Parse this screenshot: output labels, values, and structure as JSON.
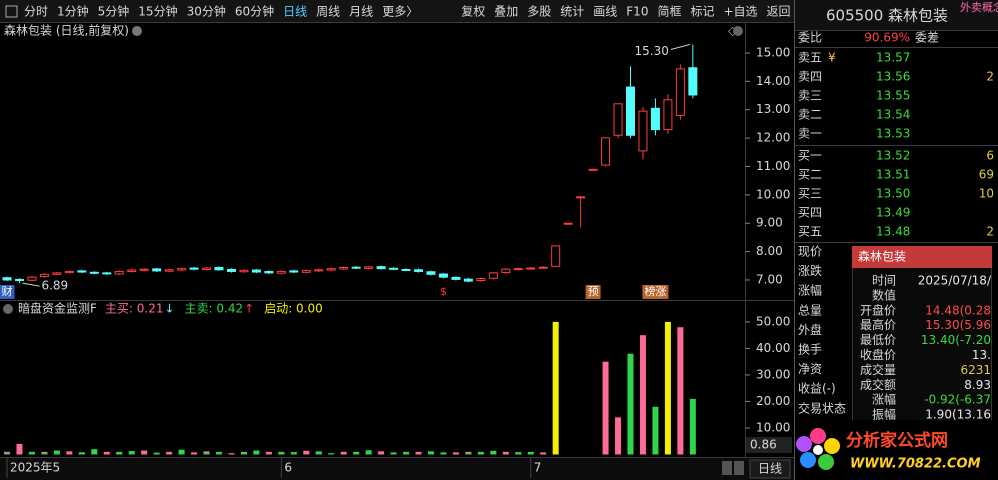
{
  "toolbar": [
    {
      "text": "分时"
    },
    {
      "text": "1分钟"
    },
    {
      "text": "5分钟"
    },
    {
      "text": "15分钟"
    },
    {
      "text": "30分钟"
    },
    {
      "text": "60分钟"
    },
    {
      "text": "日线",
      "active": true
    },
    {
      "text": "周线"
    },
    {
      "text": "月线"
    },
    {
      "text": "更多〉"
    },
    {
      "text": "复权"
    },
    {
      "text": "叠加"
    },
    {
      "text": "多股"
    },
    {
      "text": "统计"
    },
    {
      "text": "画线"
    },
    {
      "text": "F10"
    },
    {
      "text": "简框"
    },
    {
      "text": "标记"
    },
    {
      "text": "+自选"
    },
    {
      "text": "返回"
    }
  ],
  "chart_data": [
    {
      "type": "candlestick",
      "title": "森林包装 (日线,前复权)",
      "categories": [
        "2025年5",
        null,
        null,
        null,
        null,
        null,
        null,
        null,
        null,
        null,
        null,
        null,
        null,
        null,
        null,
        null,
        null,
        null,
        null,
        null,
        null,
        null,
        "6",
        null,
        null,
        null,
        null,
        null,
        null,
        null,
        null,
        null,
        null,
        null,
        null,
        null,
        null,
        null,
        null,
        null,
        null,
        null,
        "7",
        null,
        null,
        null,
        null,
        null,
        null,
        null,
        null,
        null,
        null,
        null,
        null,
        null
      ],
      "open": [
        7.08,
        7.02,
        6.99,
        7.12,
        7.2,
        7.26,
        7.32,
        7.27,
        7.25,
        7.21,
        7.3,
        7.34,
        7.39,
        7.31,
        7.35,
        7.42,
        7.37,
        7.44,
        7.37,
        7.29,
        7.35,
        7.3,
        7.24,
        7.32,
        7.27,
        7.32,
        7.35,
        7.39,
        7.45,
        7.41,
        7.47,
        7.41,
        7.37,
        7.36,
        7.29,
        7.21,
        7.09,
        7.03,
        6.98,
        7.06,
        7.26,
        7.37,
        7.41,
        7.43,
        7.48,
        9.0,
        9.9,
        10.9,
        11.05,
        12.1,
        13.8,
        11.55,
        13.05,
        12.3,
        12.8,
        14.48
      ],
      "high": [
        7.12,
        7.06,
        7.14,
        7.24,
        7.29,
        7.34,
        7.36,
        7.31,
        7.29,
        7.34,
        7.39,
        7.42,
        7.43,
        7.4,
        7.44,
        7.46,
        7.46,
        7.48,
        7.41,
        7.38,
        7.39,
        7.34,
        7.34,
        7.36,
        7.37,
        7.4,
        7.44,
        7.48,
        7.49,
        7.5,
        7.51,
        7.45,
        7.41,
        7.4,
        7.33,
        7.25,
        7.13,
        7.07,
        7.09,
        7.29,
        7.42,
        7.44,
        7.46,
        7.49,
        8.22,
        9.02,
        9.95,
        10.92,
        12.01,
        13.21,
        14.53,
        13.1,
        13.4,
        13.55,
        14.6,
        15.3
      ],
      "low": [
        6.96,
        6.89,
        6.95,
        7.08,
        7.16,
        7.22,
        7.24,
        7.2,
        7.18,
        7.17,
        7.26,
        7.3,
        7.28,
        7.27,
        7.31,
        7.34,
        7.33,
        7.32,
        7.26,
        7.25,
        7.24,
        7.21,
        7.2,
        7.24,
        7.23,
        7.28,
        7.31,
        7.35,
        7.38,
        7.37,
        7.36,
        7.34,
        7.31,
        7.26,
        7.16,
        7.06,
        6.98,
        6.92,
        6.94,
        7.02,
        7.22,
        7.33,
        7.37,
        7.39,
        7.45,
        8.98,
        8.85,
        10.88,
        11.0,
        12.0,
        12.0,
        11.25,
        12.1,
        12.15,
        12.65,
        13.4
      ],
      "close": [
        7.0,
        6.98,
        7.1,
        7.2,
        7.25,
        7.3,
        7.28,
        7.24,
        7.22,
        7.3,
        7.35,
        7.38,
        7.32,
        7.36,
        7.4,
        7.38,
        7.42,
        7.36,
        7.3,
        7.34,
        7.28,
        7.25,
        7.3,
        7.28,
        7.33,
        7.36,
        7.4,
        7.44,
        7.42,
        7.46,
        7.4,
        7.38,
        7.35,
        7.3,
        7.2,
        7.1,
        7.02,
        6.96,
        7.05,
        7.25,
        7.38,
        7.4,
        7.42,
        7.45,
        8.2,
        9.0,
        9.93,
        10.9,
        12.01,
        13.21,
        12.1,
        12.95,
        12.3,
        13.35,
        14.44,
        13.52
      ],
      "up_color": "#ff3c3c",
      "down_color": "#54fcfc",
      "ylim": [
        6.4,
        15.81
      ],
      "yticks": [
        {
          "value": 7,
          "label": "7.00"
        },
        {
          "value": 8,
          "label": "8.00"
        },
        {
          "value": 9,
          "label": "9.00"
        },
        {
          "value": 10,
          "label": "10.00"
        },
        {
          "value": 11,
          "label": "11.00"
        },
        {
          "value": 12,
          "label": "12.00"
        },
        {
          "value": 13,
          "label": "13.00"
        },
        {
          "value": 14,
          "label": "14.00"
        },
        {
          "value": 15,
          "label": "15.00"
        }
      ],
      "max_label": "15.30",
      "min_label": "6.89",
      "events": [
        {
          "text": "财",
          "color": "#ffffff",
          "bg": "#2f5fc0"
        },
        null,
        null,
        null,
        null,
        null,
        null,
        null,
        null,
        null,
        null,
        null,
        null,
        null,
        null,
        null,
        null,
        null,
        null,
        null,
        null,
        null,
        null,
        null,
        null,
        null,
        null,
        null,
        null,
        null,
        null,
        null,
        null,
        null,
        null,
        {
          "text": "$",
          "color": "#ff3030",
          "bg": "#000000"
        },
        null,
        null,
        null,
        null,
        null,
        null,
        null,
        null,
        null,
        null,
        null,
        {
          "text": "预",
          "color": "#ffffff",
          "bg": "#b8642a"
        },
        null,
        null,
        null,
        null,
        {
          "text": "榜涨",
          "color": "#ffffff",
          "bg": "#b8642a"
        },
        null,
        null,
        null
      ]
    },
    {
      "type": "bar",
      "title": "暗盘资金监测F",
      "series": [
        {
          "name": "主买: 0.21",
          "arrow": "↓",
          "arrow_color": "#54fcfc",
          "color": "#ff6a96",
          "values": [
            1,
            4,
            0.5,
            1,
            0,
            1.2,
            0.8,
            0,
            1,
            0.6,
            0,
            1.5,
            0.5,
            1,
            0,
            0.8,
            1.2,
            0,
            0.5,
            1,
            0,
            1,
            0.6,
            0,
            1.4,
            0.7,
            0,
            1,
            0.5,
            0,
            1.2,
            0.8,
            0,
            1,
            0.4,
            0,
            0.8,
            1,
            0.5,
            0,
            1,
            0.6,
            0,
            0.8,
            0,
            0,
            0,
            0,
            35,
            14,
            0,
            45,
            0,
            0,
            48,
            0
          ]
        },
        {
          "name": "主卖: 0.42",
          "arrow": "↑",
          "arrow_color": "#ff3c3c",
          "color": "#2fd64a",
          "values": [
            0.5,
            0,
            1,
            0.6,
            1.5,
            0,
            0.8,
            2,
            0,
            1,
            1.3,
            0,
            0.7,
            0,
            1.8,
            0,
            0.6,
            1,
            0,
            0.8,
            1.5,
            0,
            1,
            0.9,
            0,
            1.2,
            0.5,
            0,
            1,
            1.6,
            0,
            0.7,
            1,
            0,
            1.2,
            0.8,
            0,
            0.6,
            1,
            1.4,
            0,
            0.9,
            1,
            0,
            0,
            0,
            0,
            0,
            0,
            0,
            38,
            0,
            18,
            0,
            0,
            21
          ]
        },
        {
          "name": "启动: 0.00",
          "color": "#f5f000",
          "values": [
            0,
            0,
            0,
            0,
            0,
            0,
            0,
            0,
            0,
            0,
            0,
            0,
            0,
            0,
            0,
            0,
            0,
            0,
            0,
            0,
            0,
            0,
            0,
            0,
            0,
            0,
            0,
            0,
            0,
            0,
            0,
            0,
            0,
            0,
            0,
            0,
            0,
            0,
            0,
            0,
            0,
            0,
            0,
            0,
            50,
            0,
            0,
            0,
            0,
            0,
            0,
            0,
            0,
            50,
            0,
            0
          ]
        }
      ],
      "ylim": [
        0,
        57.5
      ],
      "yticks": [
        {
          "value": 10,
          "label": "10.00"
        },
        {
          "value": 20,
          "label": "20.00"
        },
        {
          "value": 30,
          "label": "30.00"
        },
        {
          "value": 40,
          "label": "40.00"
        },
        {
          "value": 50,
          "label": "50.00"
        }
      ],
      "axis_readout": "0.86"
    }
  ],
  "period_button": "日线",
  "quote": {
    "code_name": "605500 森林包装",
    "tag": "外卖概念",
    "ratio_label": "委比",
    "ratio": "90.69%",
    "diff_label": "委差",
    "asks": [
      {
        "label": "卖五",
        "icon": "¥",
        "price": "13.57"
      },
      {
        "label": "卖四",
        "price": "13.56",
        "volume": "2"
      },
      {
        "label": "卖三",
        "price": "13.55"
      },
      {
        "label": "卖二",
        "price": "13.54"
      },
      {
        "label": "卖一",
        "price": "13.53"
      }
    ],
    "bids": [
      {
        "label": "买一",
        "price": "13.52",
        "volume": "6"
      },
      {
        "label": "买二",
        "price": "13.51",
        "volume": "69"
      },
      {
        "label": "买三",
        "price": "13.50",
        "volume": "10"
      },
      {
        "label": "买四",
        "price": "13.49"
      },
      {
        "label": "买五",
        "price": "13.48",
        "volume": "2"
      }
    ],
    "fields": [
      "现价",
      "涨跌",
      "涨幅",
      "总量",
      "外盘",
      "换手",
      "净资",
      "收益(-)",
      "交易状态"
    ]
  },
  "popup": {
    "title": "森林包装",
    "rows": [
      {
        "label": "时间",
        "value": "2025/07/18/",
        "color": "#e6e6e6"
      },
      {
        "label": "数值"
      },
      {
        "label": "开盘价",
        "value": "14.48(0.28",
        "color": "#ff4a4a"
      },
      {
        "label": "最高价",
        "value": "15.30(5.96",
        "color": "#ff4a4a"
      },
      {
        "label": "最低价",
        "value": "13.40(-7.20",
        "color": "#3cdc3c"
      },
      {
        "label": "收盘价",
        "value": "13.",
        "color": "#e6e6e6"
      },
      {
        "label": "成交量",
        "value": "6231",
        "color": "#e6c84a"
      },
      {
        "label": "成交额",
        "value": "8.93",
        "color": "#e6e6e6"
      },
      {
        "label": "涨幅",
        "value": "-0.92(-6.37",
        "color": "#3cdc3c"
      },
      {
        "label": "振幅",
        "value": "1.90(13.16",
        "color": "#e6e6e6"
      }
    ]
  },
  "logo": {
    "title": "分析家公式网",
    "url": "WWW.70822.COM"
  }
}
